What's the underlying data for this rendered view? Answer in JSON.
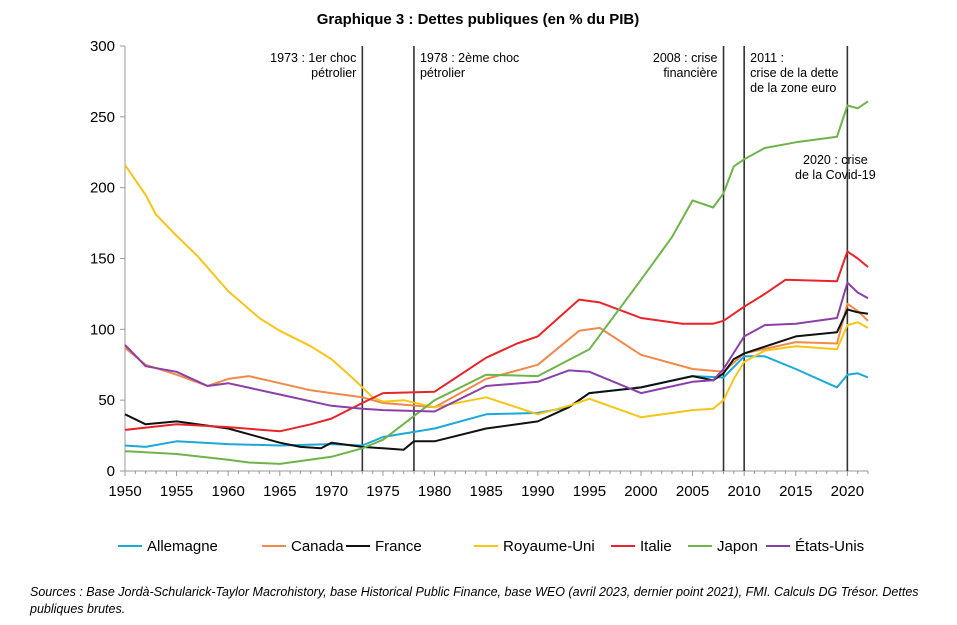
{
  "chart_data": {
    "type": "line",
    "title": "Graphique 3 : Dettes publiques (en % du PIB)",
    "xlabel": "",
    "ylabel": "",
    "xlim": [
      1950,
      2022
    ],
    "ylim": [
      0,
      300
    ],
    "x_ticks": [
      1950,
      1955,
      1960,
      1965,
      1970,
      1975,
      1980,
      1985,
      1990,
      1995,
      2000,
      2005,
      2010,
      2015,
      2020
    ],
    "y_ticks": [
      0,
      50,
      100,
      150,
      200,
      250,
      300
    ],
    "grid": false,
    "legend_position": "bottom",
    "events": [
      {
        "x": 1973,
        "lines": [
          "1973 : 1er choc",
          "pétrolier"
        ],
        "align": "right"
      },
      {
        "x": 1978,
        "lines": [
          "1978 : 2ème choc",
          "pétrolier"
        ],
        "align": "left"
      },
      {
        "x": 2008,
        "lines": [
          "2008 : crise",
          "financière"
        ],
        "align": "right"
      },
      {
        "x": 2010,
        "lines": [
          "2011 :",
          "crise de la dette",
          "de la zone euro"
        ],
        "align": "left"
      },
      {
        "x": 2020,
        "lines": [
          "2020 : crise",
          "de la Covid-19"
        ],
        "align": "center"
      }
    ],
    "series": [
      {
        "name": "Allemagne",
        "color": "#1aa9d8",
        "points": [
          [
            1950,
            18
          ],
          [
            1952,
            17
          ],
          [
            1955,
            21
          ],
          [
            1960,
            19
          ],
          [
            1965,
            18
          ],
          [
            1970,
            19
          ],
          [
            1973,
            18
          ],
          [
            1975,
            24
          ],
          [
            1980,
            30
          ],
          [
            1985,
            40
          ],
          [
            1990,
            41
          ],
          [
            1993,
            45
          ],
          [
            1995,
            55
          ],
          [
            2000,
            59
          ],
          [
            2005,
            67
          ],
          [
            2008,
            66
          ],
          [
            2010,
            81
          ],
          [
            2012,
            81
          ],
          [
            2015,
            72
          ],
          [
            2019,
            59
          ],
          [
            2020,
            68
          ],
          [
            2021,
            69
          ],
          [
            2022,
            66
          ]
        ]
      },
      {
        "name": "Canada",
        "color": "#f08a4b",
        "points": [
          [
            1950,
            87
          ],
          [
            1952,
            75
          ],
          [
            1955,
            68
          ],
          [
            1958,
            60
          ],
          [
            1960,
            65
          ],
          [
            1962,
            67
          ],
          [
            1965,
            62
          ],
          [
            1968,
            57
          ],
          [
            1970,
            55
          ],
          [
            1973,
            52
          ],
          [
            1975,
            48
          ],
          [
            1980,
            45
          ],
          [
            1985,
            65
          ],
          [
            1990,
            75
          ],
          [
            1994,
            99
          ],
          [
            1996,
            101
          ],
          [
            2000,
            82
          ],
          [
            2005,
            72
          ],
          [
            2008,
            70
          ],
          [
            2010,
            83
          ],
          [
            2015,
            91
          ],
          [
            2019,
            90
          ],
          [
            2020,
            118
          ],
          [
            2021,
            113
          ],
          [
            2022,
            106
          ]
        ]
      },
      {
        "name": "France",
        "color": "#111111",
        "points": [
          [
            1950,
            40
          ],
          [
            1952,
            33
          ],
          [
            1955,
            35
          ],
          [
            1960,
            30
          ],
          [
            1962,
            26
          ],
          [
            1965,
            20
          ],
          [
            1967,
            17
          ],
          [
            1969,
            16
          ],
          [
            1970,
            20
          ],
          [
            1973,
            17
          ],
          [
            1975,
            16
          ],
          [
            1977,
            15
          ],
          [
            1978,
            21
          ],
          [
            1980,
            21
          ],
          [
            1985,
            30
          ],
          [
            1990,
            35
          ],
          [
            1993,
            45
          ],
          [
            1995,
            55
          ],
          [
            2000,
            59
          ],
          [
            2005,
            67
          ],
          [
            2007,
            64
          ],
          [
            2008,
            69
          ],
          [
            2009,
            79
          ],
          [
            2010,
            83
          ],
          [
            2015,
            95
          ],
          [
            2019,
            98
          ],
          [
            2020,
            114
          ],
          [
            2021,
            112
          ],
          [
            2022,
            111
          ]
        ]
      },
      {
        "name": "Royaume-Uni",
        "color": "#f5c518",
        "points": [
          [
            1950,
            216
          ],
          [
            1952,
            195
          ],
          [
            1953,
            181
          ],
          [
            1955,
            166
          ],
          [
            1957,
            152
          ],
          [
            1960,
            127
          ],
          [
            1963,
            108
          ],
          [
            1965,
            99
          ],
          [
            1968,
            88
          ],
          [
            1970,
            79
          ],
          [
            1972,
            66
          ],
          [
            1974,
            52
          ],
          [
            1975,
            49
          ],
          [
            1977,
            50
          ],
          [
            1980,
            45
          ],
          [
            1985,
            52
          ],
          [
            1990,
            40
          ],
          [
            1993,
            46
          ],
          [
            1995,
            51
          ],
          [
            2000,
            38
          ],
          [
            2005,
            43
          ],
          [
            2007,
            44
          ],
          [
            2008,
            50
          ],
          [
            2009,
            65
          ],
          [
            2010,
            77
          ],
          [
            2012,
            85
          ],
          [
            2015,
            88
          ],
          [
            2019,
            86
          ],
          [
            2020,
            103
          ],
          [
            2021,
            105
          ],
          [
            2022,
            101
          ]
        ]
      },
      {
        "name": "Italie",
        "color": "#e8242a",
        "points": [
          [
            1950,
            29
          ],
          [
            1955,
            33
          ],
          [
            1960,
            31
          ],
          [
            1965,
            28
          ],
          [
            1968,
            33
          ],
          [
            1970,
            37
          ],
          [
            1973,
            48
          ],
          [
            1975,
            55
          ],
          [
            1980,
            56
          ],
          [
            1985,
            80
          ],
          [
            1988,
            90
          ],
          [
            1990,
            95
          ],
          [
            1992,
            108
          ],
          [
            1994,
            121
          ],
          [
            1996,
            119
          ],
          [
            2000,
            108
          ],
          [
            2004,
            104
          ],
          [
            2007,
            104
          ],
          [
            2008,
            106
          ],
          [
            2010,
            116
          ],
          [
            2012,
            125
          ],
          [
            2014,
            135
          ],
          [
            2019,
            134
          ],
          [
            2020,
            155
          ],
          [
            2021,
            150
          ],
          [
            2022,
            144
          ]
        ]
      },
      {
        "name": "Japon",
        "color": "#6fb44a",
        "points": [
          [
            1950,
            14
          ],
          [
            1955,
            12
          ],
          [
            1960,
            8
          ],
          [
            1962,
            6
          ],
          [
            1965,
            5
          ],
          [
            1970,
            10
          ],
          [
            1973,
            16
          ],
          [
            1975,
            22
          ],
          [
            1980,
            50
          ],
          [
            1985,
            68
          ],
          [
            1990,
            67
          ],
          [
            1995,
            86
          ],
          [
            2000,
            135
          ],
          [
            2003,
            165
          ],
          [
            2005,
            191
          ],
          [
            2007,
            186
          ],
          [
            2008,
            196
          ],
          [
            2009,
            215
          ],
          [
            2010,
            220
          ],
          [
            2012,
            228
          ],
          [
            2015,
            232
          ],
          [
            2019,
            236
          ],
          [
            2020,
            258
          ],
          [
            2021,
            256
          ],
          [
            2022,
            261
          ]
        ]
      },
      {
        "name": "États-Unis",
        "color": "#8b3fa8",
        "points": [
          [
            1950,
            89
          ],
          [
            1952,
            74
          ],
          [
            1955,
            70
          ],
          [
            1958,
            60
          ],
          [
            1960,
            62
          ],
          [
            1965,
            54
          ],
          [
            1970,
            46
          ],
          [
            1973,
            44
          ],
          [
            1975,
            43
          ],
          [
            1980,
            42
          ],
          [
            1985,
            60
          ],
          [
            1990,
            63
          ],
          [
            1993,
            71
          ],
          [
            1995,
            70
          ],
          [
            2000,
            55
          ],
          [
            2005,
            63
          ],
          [
            2007,
            64
          ],
          [
            2008,
            72
          ],
          [
            2010,
            95
          ],
          [
            2012,
            103
          ],
          [
            2015,
            104
          ],
          [
            2019,
            108
          ],
          [
            2020,
            133
          ],
          [
            2021,
            126
          ],
          [
            2022,
            122
          ]
        ]
      }
    ]
  },
  "footer": {
    "source": "Sources : Base Jordà-Schularick-Taylor Macrohistory, base Historical Public Finance, base WEO (avril 2023, dernier point 2021), FMI. Calculs DG Trésor. Dettes publiques brutes."
  }
}
